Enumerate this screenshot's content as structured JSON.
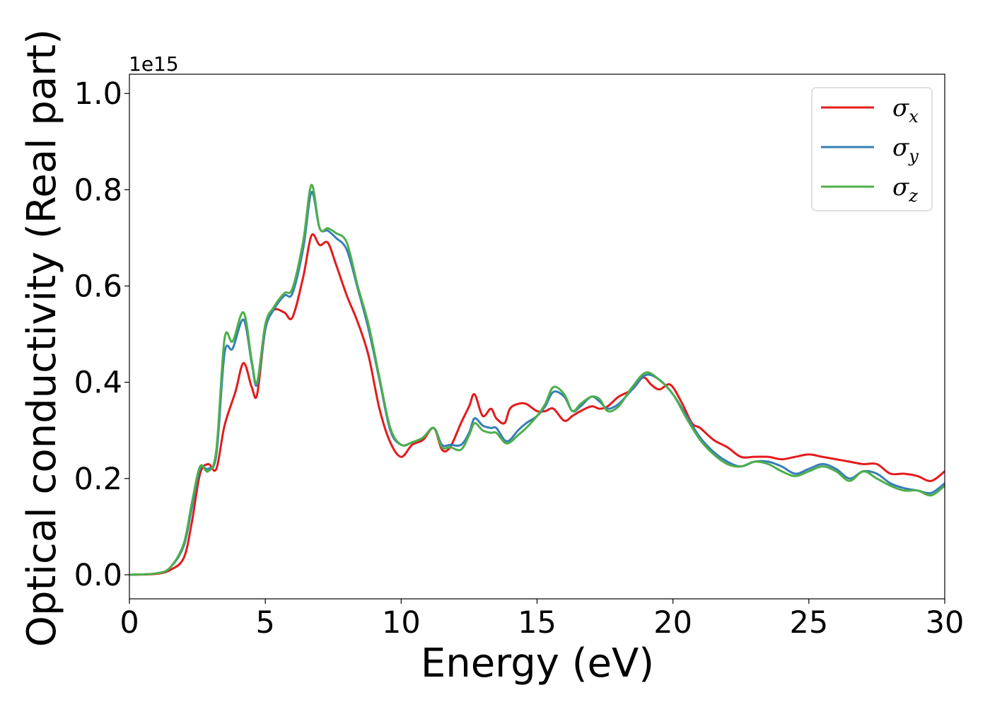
{
  "chart_data": {
    "type": "line",
    "title": "",
    "xlabel": "Energy (eV)",
    "ylabel": "Optical conductivity (Real part)",
    "y_multiplier_label": "1e15",
    "xlim": [
      0,
      30
    ],
    "ylim": [
      -0.05,
      1.04
    ],
    "xticks": [
      0,
      5,
      10,
      15,
      20,
      25,
      30
    ],
    "xtick_labels": [
      "0",
      "5",
      "10",
      "15",
      "20",
      "25",
      "30"
    ],
    "yticks": [
      0.0,
      0.2,
      0.4,
      0.6,
      0.8,
      1.0
    ],
    "ytick_labels": [
      "0.0",
      "0.2",
      "0.4",
      "0.6",
      "0.8",
      "1.0"
    ],
    "grid": false,
    "legend_position": "top-right",
    "series": [
      {
        "name": "σx",
        "name_base": "σ",
        "name_sub": "x",
        "color": "#e41a1c",
        "x": [
          0,
          1,
          1.5,
          2,
          2.3,
          2.6,
          2.9,
          3.2,
          3.5,
          3.9,
          4.2,
          4.5,
          4.7,
          5.0,
          5.3,
          5.7,
          6.0,
          6.4,
          6.7,
          7.0,
          7.3,
          7.6,
          8.0,
          8.4,
          8.8,
          9.2,
          9.6,
          10.0,
          10.4,
          10.8,
          11.2,
          11.5,
          11.8,
          12.2,
          12.5,
          12.7,
          13.0,
          13.3,
          13.5,
          13.8,
          14.0,
          14.3,
          14.6,
          15.0,
          15.3,
          15.6,
          16.0,
          16.3,
          16.6,
          17.0,
          17.3,
          17.6,
          18.0,
          18.5,
          18.9,
          19.2,
          19.5,
          19.9,
          20.3,
          20.7,
          21.0,
          21.5,
          22.0,
          22.5,
          23.0,
          23.5,
          24.0,
          24.5,
          25.0,
          25.5,
          26.0,
          26.5,
          27.0,
          27.5,
          28.0,
          28.5,
          29.0,
          29.5,
          30.0
        ],
        "values": [
          0.0,
          0.002,
          0.01,
          0.035,
          0.11,
          0.21,
          0.23,
          0.22,
          0.31,
          0.38,
          0.44,
          0.39,
          0.375,
          0.51,
          0.55,
          0.545,
          0.535,
          0.62,
          0.705,
          0.685,
          0.69,
          0.645,
          0.58,
          0.525,
          0.455,
          0.345,
          0.275,
          0.245,
          0.27,
          0.28,
          0.305,
          0.26,
          0.265,
          0.315,
          0.35,
          0.375,
          0.33,
          0.345,
          0.325,
          0.315,
          0.345,
          0.355,
          0.355,
          0.34,
          0.34,
          0.345,
          0.32,
          0.33,
          0.34,
          0.35,
          0.345,
          0.35,
          0.37,
          0.385,
          0.41,
          0.395,
          0.385,
          0.395,
          0.36,
          0.315,
          0.305,
          0.28,
          0.265,
          0.245,
          0.245,
          0.245,
          0.24,
          0.245,
          0.25,
          0.245,
          0.24,
          0.235,
          0.23,
          0.23,
          0.21,
          0.21,
          0.205,
          0.195,
          0.215
        ]
      },
      {
        "name": "σy",
        "name_base": "σ",
        "name_sub": "y",
        "color": "#377eb8",
        "x": [
          0,
          1,
          1.5,
          2,
          2.3,
          2.6,
          2.9,
          3.2,
          3.5,
          3.8,
          4.2,
          4.5,
          4.7,
          5.0,
          5.3,
          5.7,
          6.0,
          6.4,
          6.7,
          7.0,
          7.3,
          7.6,
          8.0,
          8.4,
          8.8,
          9.2,
          9.6,
          10.0,
          10.4,
          10.8,
          11.2,
          11.5,
          11.8,
          12.2,
          12.5,
          12.7,
          13.0,
          13.3,
          13.5,
          13.8,
          14.0,
          14.3,
          14.6,
          15.0,
          15.3,
          15.6,
          16.0,
          16.3,
          16.6,
          17.0,
          17.3,
          17.6,
          18.0,
          18.5,
          19.0,
          19.5,
          20.0,
          20.5,
          21.0,
          21.5,
          22.0,
          22.5,
          23.0,
          23.5,
          24.0,
          24.5,
          25.0,
          25.5,
          26.0,
          26.5,
          27.0,
          27.5,
          28.0,
          28.5,
          29.0,
          29.5,
          30.0
        ],
        "values": [
          0.0,
          0.003,
          0.015,
          0.06,
          0.14,
          0.22,
          0.22,
          0.25,
          0.46,
          0.47,
          0.53,
          0.44,
          0.395,
          0.51,
          0.55,
          0.58,
          0.585,
          0.68,
          0.795,
          0.72,
          0.715,
          0.7,
          0.675,
          0.595,
          0.51,
          0.405,
          0.3,
          0.27,
          0.275,
          0.285,
          0.305,
          0.27,
          0.27,
          0.27,
          0.295,
          0.325,
          0.31,
          0.305,
          0.305,
          0.28,
          0.28,
          0.3,
          0.315,
          0.33,
          0.35,
          0.38,
          0.37,
          0.34,
          0.35,
          0.37,
          0.36,
          0.345,
          0.355,
          0.385,
          0.415,
          0.405,
          0.375,
          0.33,
          0.285,
          0.255,
          0.235,
          0.225,
          0.235,
          0.235,
          0.225,
          0.21,
          0.22,
          0.23,
          0.22,
          0.2,
          0.215,
          0.21,
          0.19,
          0.18,
          0.175,
          0.17,
          0.19
        ]
      },
      {
        "name": "σz",
        "name_base": "σ",
        "name_sub": "z",
        "color": "#4daf4a",
        "x": [
          0,
          1,
          1.5,
          2,
          2.3,
          2.6,
          2.9,
          3.2,
          3.5,
          3.8,
          4.2,
          4.5,
          4.7,
          5.0,
          5.3,
          5.7,
          6.0,
          6.4,
          6.7,
          7.0,
          7.3,
          7.6,
          8.0,
          8.4,
          8.8,
          9.2,
          9.6,
          10.0,
          10.4,
          10.8,
          11.2,
          11.5,
          11.8,
          12.2,
          12.5,
          12.7,
          13.0,
          13.3,
          13.5,
          13.8,
          14.0,
          14.3,
          14.6,
          15.0,
          15.3,
          15.6,
          16.0,
          16.3,
          16.6,
          17.0,
          17.3,
          17.6,
          18.0,
          18.5,
          19.0,
          19.5,
          20.0,
          20.5,
          21.0,
          21.5,
          22.0,
          22.5,
          23.0,
          23.5,
          24.0,
          24.5,
          25.0,
          25.5,
          26.0,
          26.5,
          27.0,
          27.5,
          28.0,
          28.5,
          29.0,
          29.5,
          30.0
        ],
        "values": [
          0.0,
          0.003,
          0.015,
          0.065,
          0.15,
          0.225,
          0.215,
          0.26,
          0.49,
          0.485,
          0.545,
          0.445,
          0.4,
          0.52,
          0.555,
          0.585,
          0.595,
          0.695,
          0.81,
          0.72,
          0.72,
          0.71,
          0.69,
          0.6,
          0.52,
          0.41,
          0.305,
          0.27,
          0.275,
          0.285,
          0.305,
          0.265,
          0.265,
          0.26,
          0.29,
          0.315,
          0.3,
          0.295,
          0.295,
          0.275,
          0.275,
          0.29,
          0.305,
          0.33,
          0.355,
          0.39,
          0.375,
          0.34,
          0.355,
          0.37,
          0.365,
          0.34,
          0.35,
          0.39,
          0.42,
          0.405,
          0.375,
          0.325,
          0.28,
          0.25,
          0.23,
          0.225,
          0.235,
          0.23,
          0.215,
          0.205,
          0.215,
          0.225,
          0.215,
          0.195,
          0.215,
          0.2,
          0.185,
          0.175,
          0.175,
          0.165,
          0.185
        ]
      }
    ]
  }
}
